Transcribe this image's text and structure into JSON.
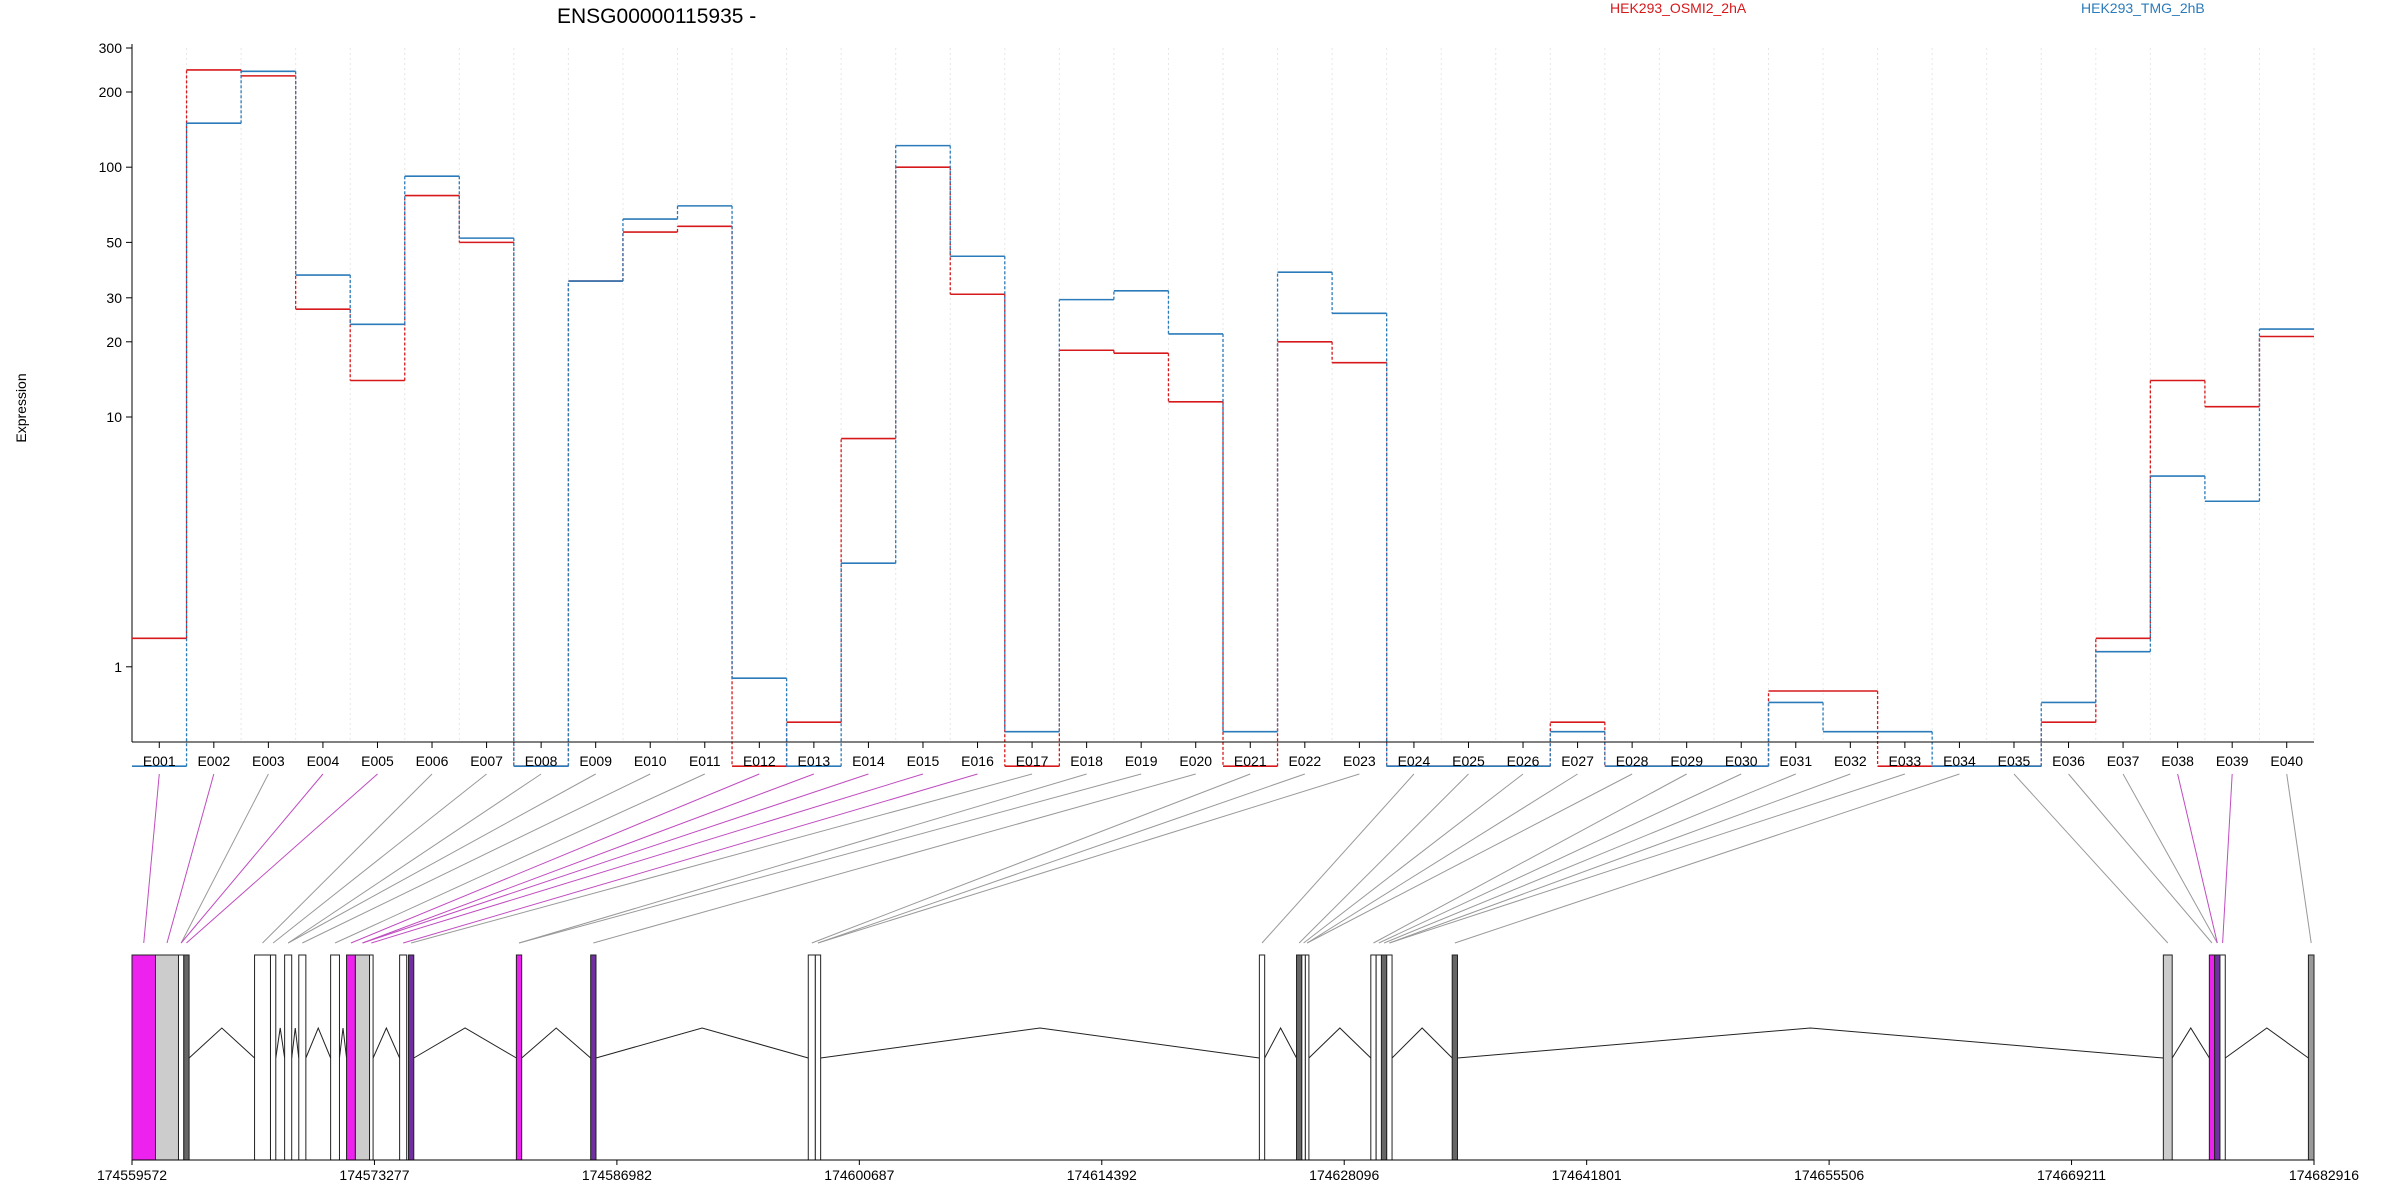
{
  "chart_data": {
    "type": "line",
    "title": "ENSG00000115935 -",
    "ylabel": "Expression",
    "xlabel": "",
    "y_scale": "log",
    "ylim": [
      0.5,
      300
    ],
    "y_ticks": [
      1,
      10,
      20,
      30,
      50,
      100,
      200,
      300
    ],
    "grid": "vertical",
    "legend_position": "top",
    "categories": [
      "E001",
      "E002",
      "E003",
      "E004",
      "E005",
      "E006",
      "E007",
      "E008",
      "E009",
      "E010",
      "E011",
      "E012",
      "E013",
      "E014",
      "E015",
      "E016",
      "E017",
      "E018",
      "E019",
      "E020",
      "E021",
      "E022",
      "E023",
      "E024",
      "E025",
      "E026",
      "E027",
      "E028",
      "E029",
      "E030",
      "E031",
      "E032",
      "E033",
      "E034",
      "E035",
      "E036",
      "E037",
      "E038",
      "E039",
      "E040"
    ],
    "series": [
      {
        "name": "HEK293_OSMI2_2hA",
        "color": "#d7191c",
        "values": [
          1.3,
          245,
          232,
          27,
          14,
          77,
          50,
          0.4,
          35,
          55,
          58,
          0.4,
          0.6,
          8.2,
          100,
          31,
          0.4,
          18.5,
          18,
          11.5,
          0.4,
          20,
          16.5,
          0.4,
          0.4,
          0.4,
          0.6,
          0.4,
          0.4,
          0.4,
          0.8,
          0.8,
          0.4,
          0.4,
          0.4,
          0.6,
          1.3,
          14,
          11,
          21
        ]
      },
      {
        "name": "HEK293_TMG_2hB",
        "color": "#2b7bba",
        "values": [
          0.4,
          150,
          242,
          37,
          23.5,
          92,
          52,
          0.4,
          35,
          62,
          70,
          0.9,
          0.4,
          2.6,
          122,
          44,
          0.55,
          29.5,
          32,
          21.5,
          0.55,
          38,
          26,
          0.4,
          0.4,
          0.4,
          0.55,
          0.4,
          0.4,
          0.4,
          0.72,
          0.55,
          0.55,
          0.4,
          0.4,
          0.72,
          1.15,
          5.8,
          4.6,
          22.5
        ]
      }
    ],
    "genomic_axis": {
      "ticks": [
        174559572,
        174573277,
        174586982,
        174600687,
        174614392,
        174628096,
        174641801,
        174655506,
        174669211,
        174682916
      ],
      "range": [
        174559572,
        174682916
      ]
    },
    "exon_positions": [
      [
        174559572,
        174560900
      ],
      [
        174560900,
        174562200
      ],
      [
        174562200,
        174562500
      ],
      [
        174562500,
        174562800
      ],
      [
        174566500,
        174567400
      ],
      [
        174567400,
        174567700
      ],
      [
        174568200,
        174568600
      ],
      [
        174569000,
        174569400
      ],
      [
        174570800,
        174571300
      ],
      [
        174571700,
        174572200
      ],
      [
        174572200,
        174573000
      ],
      [
        174573000,
        174573200
      ],
      [
        174574700,
        174575100
      ],
      [
        174575200,
        174575500
      ],
      [
        174581300,
        174581600
      ],
      [
        174585500,
        174585800
      ],
      [
        174597800,
        174598200
      ],
      [
        174598200,
        174598500
      ],
      [
        174623300,
        174623600
      ],
      [
        174625400,
        174625700
      ],
      [
        174625700,
        174625900
      ],
      [
        174625900,
        174626100
      ],
      [
        174629600,
        174629900
      ],
      [
        174629900,
        174630200
      ],
      [
        174630200,
        174630500
      ],
      [
        174630500,
        174630800
      ],
      [
        174634200,
        174634500
      ],
      [
        174674400,
        174674900
      ],
      [
        174677000,
        174677300
      ],
      [
        174677300,
        174677600
      ],
      [
        174677600,
        174677900
      ],
      [
        174682600,
        174682916
      ]
    ],
    "exon_colors": [
      "#ee22ee",
      "#cccccc",
      "#ffffff",
      "#666666",
      "#ffffff",
      "#ffffff",
      "#ffffff",
      "#ffffff",
      "#ffffff",
      "#ee22ee",
      "#cccccc",
      "#ffffff",
      "#ffffff",
      "#7030a0",
      "#ee22ee",
      "#7030a0",
      "#ffffff",
      "#ffffff",
      "#ffffff",
      "#666666",
      "#ffffff",
      "#ffffff",
      "#ffffff",
      "#ffffff",
      "#666666",
      "#ffffff",
      "#666666",
      "#cccccc",
      "#ee22ee",
      "#7030a0",
      "#ffffff",
      "#999999"
    ],
    "line_colors": [
      "#c04cc0",
      "#c04cc0",
      "#999999",
      "#c04cc0",
      "#c04cc0",
      "#999999",
      "#999999",
      "#999999",
      "#999999",
      "#999999",
      "#999999",
      "#c04cc0",
      "#c04cc0",
      "#c04cc0",
      "#c04cc0",
      "#c04cc0",
      "#999999",
      "#999999",
      "#999999",
      "#999999",
      "#999999",
      "#999999",
      "#999999",
      "#999999",
      "#999999",
      "#999999",
      "#999999",
      "#999999",
      "#999999",
      "#999999",
      "#999999",
      "#999999",
      "#999999",
      "#999999",
      "#999999",
      "#999999",
      "#999999",
      "#c04cc0",
      "#c04cc0",
      "#999999"
    ]
  }
}
